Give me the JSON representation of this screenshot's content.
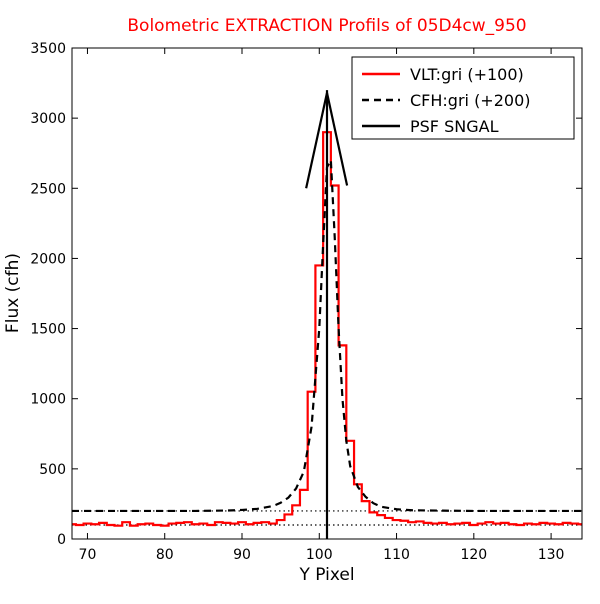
{
  "chart_data": {
    "type": "line",
    "title": "Bolometric EXTRACTION Profils of 05D4cw_950",
    "title_color": "#ff0000",
    "xlabel": "Y Pixel",
    "ylabel": "Flux (cfh)",
    "xlim": [
      68,
      134
    ],
    "ylim": [
      0,
      3500
    ],
    "xticks": [
      70,
      80,
      90,
      100,
      110,
      120,
      130
    ],
    "yticks": [
      0,
      500,
      1000,
      1500,
      2000,
      2500,
      3000,
      3500
    ],
    "grid": false,
    "legend_position": "top-right",
    "reference_lines": [
      {
        "y": 100,
        "style": "dotted",
        "color": "#000000"
      },
      {
        "y": 200,
        "style": "dotted",
        "color": "#000000"
      }
    ],
    "series": [
      {
        "name": "VLT:gri (+100)",
        "color": "#ff0000",
        "style": "steps",
        "x": [
          68,
          69,
          70,
          71,
          72,
          73,
          74,
          75,
          76,
          77,
          78,
          79,
          80,
          81,
          82,
          83,
          84,
          85,
          86,
          87,
          88,
          89,
          90,
          91,
          92,
          93,
          94,
          95,
          96,
          97,
          98,
          99,
          100,
          101,
          102,
          103,
          104,
          105,
          106,
          107,
          108,
          109,
          110,
          111,
          112,
          113,
          114,
          115,
          116,
          117,
          118,
          119,
          120,
          121,
          122,
          123,
          124,
          125,
          126,
          127,
          128,
          129,
          130,
          131,
          132,
          133,
          134
        ],
        "y": [
          105,
          100,
          110,
          105,
          115,
          100,
          95,
          120,
          95,
          105,
          110,
          100,
          95,
          110,
          115,
          120,
          105,
          110,
          100,
          120,
          115,
          110,
          120,
          105,
          115,
          120,
          110,
          135,
          175,
          240,
          350,
          1050,
          1950,
          2900,
          2520,
          1380,
          700,
          390,
          270,
          190,
          170,
          150,
          135,
          130,
          120,
          125,
          115,
          110,
          115,
          105,
          110,
          115,
          100,
          110,
          120,
          110,
          115,
          105,
          100,
          110,
          105,
          115,
          110,
          105,
          115,
          110,
          105
        ]
      },
      {
        "name": "CFH:gri (+200)",
        "color": "#000000",
        "style": "dashed",
        "x": [
          68,
          72,
          76,
          80,
          84,
          88,
          90,
          92,
          94,
          95,
          96,
          97,
          98,
          99,
          100,
          100.5,
          101,
          101.5,
          102,
          102.5,
          103,
          103.5,
          104,
          105,
          106,
          107,
          108,
          110,
          112,
          116,
          120,
          124,
          128,
          134
        ],
        "y": [
          200,
          200,
          200,
          200,
          200,
          203,
          207,
          215,
          235,
          258,
          295,
          360,
          480,
          800,
          1500,
          2100,
          2650,
          2700,
          2150,
          1500,
          1000,
          700,
          520,
          370,
          300,
          255,
          230,
          212,
          205,
          202,
          200,
          200,
          200,
          200
        ]
      },
      {
        "name": "PSF SNGAL",
        "color": "#000000",
        "style": "solid",
        "segments": [
          [
            [
              101,
              0
            ],
            [
              101,
              3200
            ]
          ],
          [
            [
              98.3,
              2500
            ],
            [
              101,
              3180
            ]
          ],
          [
            [
              101,
              3180
            ],
            [
              103.6,
              2520
            ]
          ]
        ]
      }
    ]
  }
}
